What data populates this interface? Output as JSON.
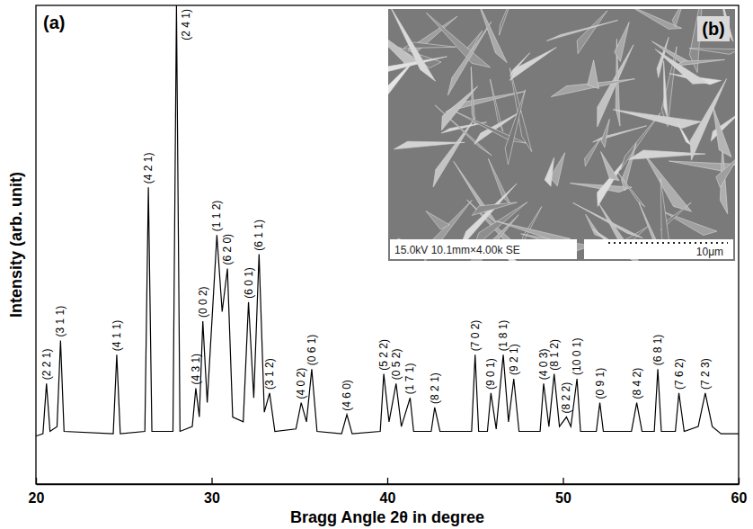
{
  "chart_data": {
    "type": "line",
    "panel_label": "(a)",
    "x_label": "Bragg Angle 2θ in degree",
    "y_label": "Intensity (arb. unit)",
    "xlim": [
      20,
      60
    ],
    "xticks": [
      20,
      30,
      40,
      50,
      60
    ],
    "ylim": [
      0,
      100
    ],
    "tick_labels": "x",
    "grid": false,
    "x": [
      20.0,
      20.4,
      20.6,
      20.8,
      21.2,
      21.4,
      21.6,
      24.4,
      24.6,
      24.8,
      26.2,
      26.4,
      26.6,
      27.8,
      28.0,
      28.2,
      28.9,
      29.1,
      29.3,
      29.5,
      29.75,
      30.3,
      30.6,
      30.9,
      31.2,
      31.8,
      32.1,
      32.4,
      32.7,
      33.0,
      33.3,
      33.6,
      34.8,
      35.1,
      35.4,
      35.7,
      36.0,
      37.4,
      37.7,
      38.0,
      39.6,
      39.8,
      40.1,
      40.5,
      40.8,
      41.3,
      41.5,
      42.5,
      42.7,
      43.0,
      44.8,
      45.0,
      45.2,
      45.7,
      45.9,
      46.2,
      46.6,
      46.9,
      47.2,
      47.5,
      48.7,
      48.9,
      49.2,
      49.5,
      49.8,
      50.2,
      50.45,
      50.8,
      51.0,
      51.9,
      52.1,
      52.3,
      53.9,
      54.2,
      54.5,
      55.2,
      55.4,
      55.6,
      56.4,
      56.6,
      56.9,
      57.7,
      58.1,
      58.5,
      59.0,
      60.0
    ],
    "series": [
      {
        "color": "#000000",
        "line_style": "solid",
        "values": [
          10,
          10.5,
          21,
          11,
          12,
          30,
          11,
          10.5,
          27,
          10.5,
          11,
          62,
          11,
          11,
          100,
          11,
          12,
          20,
          14,
          34,
          17,
          52,
          36,
          45,
          14,
          13,
          38,
          18,
          48,
          15,
          19,
          11,
          11.5,
          17,
          13,
          24,
          11,
          10.5,
          14.5,
          10.5,
          11,
          23,
          13,
          21,
          12,
          18,
          11,
          11,
          16,
          11,
          11,
          27,
          11,
          11,
          19,
          11.5,
          27,
          13,
          22,
          11,
          11,
          21,
          12,
          23,
          12,
          14,
          12,
          22,
          11,
          11,
          17,
          11,
          11,
          17,
          11,
          11,
          24,
          11,
          11,
          19,
          11,
          12,
          19,
          12,
          10.5,
          10.5
        ]
      }
    ],
    "annotations": [
      {
        "text": "(2 2 1)",
        "x": 20.6,
        "y": 21
      },
      {
        "text": "(3 1 1)",
        "x": 21.4,
        "y": 30
      },
      {
        "text": "(4 1 1)",
        "x": 24.6,
        "y": 27
      },
      {
        "text": "(4 2 1)",
        "x": 26.4,
        "y": 62
      },
      {
        "text": "(2 4 1)",
        "x": 28.0,
        "y": 100
      },
      {
        "text": "(4 3 1)",
        "x": 29.1,
        "y": 20
      },
      {
        "text": "(0 0 2)",
        "x": 29.5,
        "y": 34
      },
      {
        "text": "(1 1 2)",
        "x": 30.3,
        "y": 52
      },
      {
        "text": "(6 2 0)",
        "x": 30.9,
        "y": 45
      },
      {
        "text": "(6 0 1)",
        "x": 32.1,
        "y": 38
      },
      {
        "text": "(6 1 1)",
        "x": 32.7,
        "y": 48
      },
      {
        "text": "(3 1 2)",
        "x": 33.3,
        "y": 19
      },
      {
        "text": "(4 0 2)",
        "x": 35.1,
        "y": 17
      },
      {
        "text": "(0 6 1)",
        "x": 35.7,
        "y": 24
      },
      {
        "text": "(4 6 0)",
        "x": 37.7,
        "y": 14.5
      },
      {
        "text": "(5 2 2)",
        "x": 39.8,
        "y": 23
      },
      {
        "text": "(0 5 2)",
        "x": 40.5,
        "y": 21
      },
      {
        "text": "(1 7 1)",
        "x": 41.3,
        "y": 18
      },
      {
        "text": "(8 2 1)",
        "x": 42.7,
        "y": 16
      },
      {
        "text": "(7 0 2)",
        "x": 45.0,
        "y": 27
      },
      {
        "text": "(9 0 1)",
        "x": 45.9,
        "y": 19
      },
      {
        "text": "(1 8 1)",
        "x": 46.6,
        "y": 27
      },
      {
        "text": "(9 2 1)",
        "x": 47.2,
        "y": 22
      },
      {
        "text": "(4 0 3)",
        "x": 48.9,
        "y": 21
      },
      {
        "text": "(8 1 2)",
        "x": 49.5,
        "y": 23
      },
      {
        "text": "(8 2 2)",
        "x": 50.2,
        "y": 14
      },
      {
        "text": "(10 0 1)",
        "x": 50.8,
        "y": 22
      },
      {
        "text": "(0 9 1)",
        "x": 52.1,
        "y": 17
      },
      {
        "text": "(8 4 2)",
        "x": 54.2,
        "y": 17
      },
      {
        "text": "(6 8 1)",
        "x": 55.4,
        "y": 24
      },
      {
        "text": "(7 6 2)",
        "x": 56.6,
        "y": 19
      },
      {
        "text": "(7 2 3)",
        "x": 58.1,
        "y": 19
      }
    ],
    "inset": {
      "label": "(b)",
      "caption": "15.0kV 10.1mm×4.00k SE",
      "scale": "10μm"
    }
  }
}
